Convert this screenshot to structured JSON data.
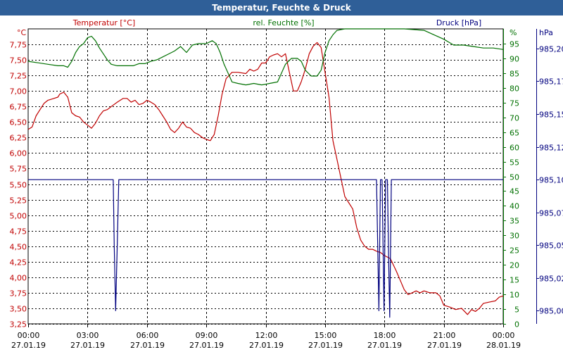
{
  "window": {
    "title": "Temperatur, Feuchte & Druck"
  },
  "colors": {
    "temperature": "#c00000",
    "humidity": "#007000",
    "pressure": "#00007f",
    "title_bar": "#2f5f98",
    "grid": "#000000"
  },
  "chart_data": {
    "type": "line",
    "title": "Temperatur, Feuchte & Druck",
    "grid": true,
    "x_axis": {
      "range_hours": [
        0,
        24
      ],
      "ticks": [
        {
          "time": "00:00",
          "date": "27.01.19"
        },
        {
          "time": "03:00",
          "date": "27.01.19"
        },
        {
          "time": "06:00",
          "date": "27.01.19"
        },
        {
          "time": "09:00",
          "date": "27.01.19"
        },
        {
          "time": "12:00",
          "date": "27.01.19"
        },
        {
          "time": "15:00",
          "date": "27.01.19"
        },
        {
          "time": "18:00",
          "date": "27.01.19"
        },
        {
          "time": "21:00",
          "date": "27.01.19"
        },
        {
          "time": "00:00",
          "date": "28.01.19"
        }
      ]
    },
    "axes": {
      "temperature": {
        "label": "Temperatur [°C]",
        "unit": "°C",
        "range": [
          3.25,
          8.0
        ],
        "ticks": [
          "7,75",
          "7,50",
          "7,25",
          "7,00",
          "6,75",
          "6,50",
          "6,25",
          "6,00",
          "5,75",
          "5,50",
          "5,25",
          "5,00",
          "4,75",
          "4,50",
          "4,25",
          "4,00",
          "3,75",
          "3,50",
          "3,25"
        ]
      },
      "humidity": {
        "label": "rel. Feuchte [%]",
        "unit": "%",
        "range": [
          0,
          100
        ],
        "ticks": [
          "95",
          "90",
          "85",
          "80",
          "75",
          "70",
          "65",
          "60",
          "55",
          "50",
          "45",
          "40",
          "35",
          "30",
          "25",
          "20",
          "15",
          "10",
          "5",
          "0"
        ]
      },
      "pressure": {
        "label": "Druck [hPa]",
        "unit": "hPa",
        "range": [
          984.99,
          985.215
        ],
        "ticks": [
          {
            "value": 985.2,
            "label": "985,20"
          },
          {
            "value": 985.175,
            "label": "985,17"
          },
          {
            "value": 985.15,
            "label": "985,15"
          },
          {
            "value": 985.125,
            "label": "985,12"
          },
          {
            "value": 985.1,
            "label": "985,10"
          },
          {
            "value": 985.075,
            "label": "985,07"
          },
          {
            "value": 985.05,
            "label": "985,05"
          },
          {
            "value": 985.025,
            "label": "985,02"
          },
          {
            "value": 985.0,
            "label": "985,00"
          }
        ]
      }
    },
    "series": [
      {
        "name": "Temperatur [°C]",
        "axis": "temperature",
        "points": [
          [
            0,
            6.38
          ],
          [
            0.2,
            6.42
          ],
          [
            0.4,
            6.6
          ],
          [
            0.6,
            6.7
          ],
          [
            0.8,
            6.8
          ],
          [
            1.0,
            6.85
          ],
          [
            1.3,
            6.88
          ],
          [
            1.5,
            6.9
          ],
          [
            1.6,
            6.95
          ],
          [
            1.8,
            6.98
          ],
          [
            2.0,
            6.9
          ],
          [
            2.2,
            6.65
          ],
          [
            2.4,
            6.6
          ],
          [
            2.6,
            6.58
          ],
          [
            2.8,
            6.5
          ],
          [
            3.0,
            6.45
          ],
          [
            3.2,
            6.4
          ],
          [
            3.4,
            6.48
          ],
          [
            3.6,
            6.6
          ],
          [
            3.8,
            6.68
          ],
          [
            4.0,
            6.7
          ],
          [
            4.2,
            6.75
          ],
          [
            4.5,
            6.82
          ],
          [
            4.8,
            6.88
          ],
          [
            5.0,
            6.88
          ],
          [
            5.2,
            6.82
          ],
          [
            5.4,
            6.85
          ],
          [
            5.6,
            6.78
          ],
          [
            5.8,
            6.8
          ],
          [
            6.0,
            6.85
          ],
          [
            6.2,
            6.82
          ],
          [
            6.4,
            6.78
          ],
          [
            6.6,
            6.7
          ],
          [
            6.8,
            6.6
          ],
          [
            7.0,
            6.5
          ],
          [
            7.2,
            6.38
          ],
          [
            7.4,
            6.33
          ],
          [
            7.6,
            6.4
          ],
          [
            7.8,
            6.5
          ],
          [
            8.0,
            6.42
          ],
          [
            8.2,
            6.4
          ],
          [
            8.4,
            6.33
          ],
          [
            8.6,
            6.3
          ],
          [
            8.8,
            6.25
          ],
          [
            9.0,
            6.22
          ],
          [
            9.2,
            6.2
          ],
          [
            9.4,
            6.3
          ],
          [
            9.6,
            6.6
          ],
          [
            9.8,
            6.95
          ],
          [
            10.0,
            7.2
          ],
          [
            10.3,
            7.3
          ],
          [
            10.6,
            7.3
          ],
          [
            11.0,
            7.28
          ],
          [
            11.2,
            7.35
          ],
          [
            11.4,
            7.32
          ],
          [
            11.6,
            7.35
          ],
          [
            11.8,
            7.45
          ],
          [
            12.0,
            7.45
          ],
          [
            12.2,
            7.55
          ],
          [
            12.4,
            7.58
          ],
          [
            12.6,
            7.6
          ],
          [
            12.8,
            7.55
          ],
          [
            13.0,
            7.6
          ],
          [
            13.2,
            7.3
          ],
          [
            13.4,
            7.0
          ],
          [
            13.6,
            7.0
          ],
          [
            13.8,
            7.15
          ],
          [
            14.0,
            7.35
          ],
          [
            14.2,
            7.6
          ],
          [
            14.4,
            7.72
          ],
          [
            14.6,
            7.78
          ],
          [
            14.8,
            7.7
          ],
          [
            15.0,
            7.3
          ],
          [
            15.2,
            6.9
          ],
          [
            15.4,
            6.2
          ],
          [
            15.6,
            5.9
          ],
          [
            15.8,
            5.6
          ],
          [
            16.0,
            5.3
          ],
          [
            16.2,
            5.2
          ],
          [
            16.4,
            5.1
          ],
          [
            16.6,
            4.8
          ],
          [
            16.8,
            4.6
          ],
          [
            17.0,
            4.5
          ],
          [
            17.2,
            4.45
          ],
          [
            17.4,
            4.45
          ],
          [
            17.6,
            4.42
          ],
          [
            17.8,
            4.4
          ],
          [
            18.0,
            4.35
          ],
          [
            18.3,
            4.3
          ],
          [
            18.6,
            4.1
          ],
          [
            18.8,
            3.95
          ],
          [
            19.0,
            3.8
          ],
          [
            19.2,
            3.72
          ],
          [
            19.4,
            3.75
          ],
          [
            19.6,
            3.78
          ],
          [
            19.8,
            3.75
          ],
          [
            20.0,
            3.78
          ],
          [
            20.3,
            3.75
          ],
          [
            20.6,
            3.75
          ],
          [
            20.8,
            3.7
          ],
          [
            21.0,
            3.55
          ],
          [
            21.3,
            3.52
          ],
          [
            21.6,
            3.48
          ],
          [
            21.9,
            3.5
          ],
          [
            22.2,
            3.4
          ],
          [
            22.4,
            3.48
          ],
          [
            22.6,
            3.45
          ],
          [
            22.8,
            3.5
          ],
          [
            23.0,
            3.58
          ],
          [
            23.3,
            3.6
          ],
          [
            23.6,
            3.62
          ],
          [
            23.8,
            3.68
          ],
          [
            24.0,
            3.7
          ]
        ]
      },
      {
        "name": "rel. Feuchte [%]",
        "axis": "humidity",
        "points": [
          [
            0,
            89
          ],
          [
            0.5,
            88.5
          ],
          [
            1.0,
            88
          ],
          [
            1.5,
            87.5
          ],
          [
            1.8,
            87.5
          ],
          [
            2.0,
            87
          ],
          [
            2.2,
            89
          ],
          [
            2.4,
            92
          ],
          [
            2.6,
            94
          ],
          [
            2.8,
            95
          ],
          [
            3.0,
            97
          ],
          [
            3.2,
            97.5
          ],
          [
            3.4,
            96
          ],
          [
            3.6,
            93.5
          ],
          [
            3.8,
            91.5
          ],
          [
            4.0,
            89.5
          ],
          [
            4.2,
            88
          ],
          [
            4.5,
            87.5
          ],
          [
            4.8,
            87.5
          ],
          [
            5.0,
            87.5
          ],
          [
            5.3,
            87.5
          ],
          [
            5.6,
            88.2
          ],
          [
            5.9,
            88.2
          ],
          [
            6.2,
            89
          ],
          [
            6.5,
            89.5
          ],
          [
            6.8,
            90.5
          ],
          [
            7.1,
            91.5
          ],
          [
            7.4,
            92.5
          ],
          [
            7.7,
            94
          ],
          [
            8.0,
            92
          ],
          [
            8.3,
            94.5
          ],
          [
            8.6,
            95
          ],
          [
            9.0,
            95
          ],
          [
            9.3,
            96
          ],
          [
            9.5,
            95
          ],
          [
            9.7,
            92
          ],
          [
            9.9,
            88
          ],
          [
            10.1,
            85
          ],
          [
            10.3,
            82
          ],
          [
            10.6,
            81.5
          ],
          [
            11.0,
            81
          ],
          [
            11.4,
            81.5
          ],
          [
            11.8,
            81
          ],
          [
            12.2,
            81.5
          ],
          [
            12.6,
            82
          ],
          [
            13.0,
            88
          ],
          [
            13.3,
            90
          ],
          [
            13.6,
            90
          ],
          [
            13.8,
            89
          ],
          [
            14.0,
            86
          ],
          [
            14.3,
            84
          ],
          [
            14.6,
            84
          ],
          [
            14.8,
            86
          ],
          [
            15.0,
            92
          ],
          [
            15.2,
            96
          ],
          [
            15.4,
            98
          ],
          [
            15.6,
            99.5
          ],
          [
            16.0,
            100
          ],
          [
            17.0,
            100
          ],
          [
            18.0,
            100
          ],
          [
            19.0,
            100
          ],
          [
            20.0,
            99.5
          ],
          [
            20.5,
            98
          ],
          [
            21.0,
            96.5
          ],
          [
            21.5,
            94.5
          ],
          [
            22.0,
            94.5
          ],
          [
            22.5,
            94
          ],
          [
            23.0,
            93.5
          ],
          [
            23.5,
            93.5
          ],
          [
            24.0,
            93
          ]
        ]
      },
      {
        "name": "Druck [hPa]",
        "axis": "pressure",
        "points": [
          [
            0,
            985.1
          ],
          [
            4.3,
            985.1
          ],
          [
            4.35,
            985.05
          ],
          [
            4.42,
            985.0
          ],
          [
            4.5,
            985.05
          ],
          [
            4.58,
            985.1
          ],
          [
            17.6,
            985.1
          ],
          [
            17.66,
            985.05
          ],
          [
            17.72,
            985.0
          ],
          [
            17.8,
            985.1
          ],
          [
            17.88,
            985.1
          ],
          [
            17.93,
            985.05
          ],
          [
            17.98,
            985.0
          ],
          [
            18.06,
            985.1
          ],
          [
            18.15,
            985.1
          ],
          [
            18.21,
            985.04
          ],
          [
            18.27,
            984.995
          ],
          [
            18.35,
            985.1
          ],
          [
            24.0,
            985.1
          ]
        ]
      }
    ]
  }
}
